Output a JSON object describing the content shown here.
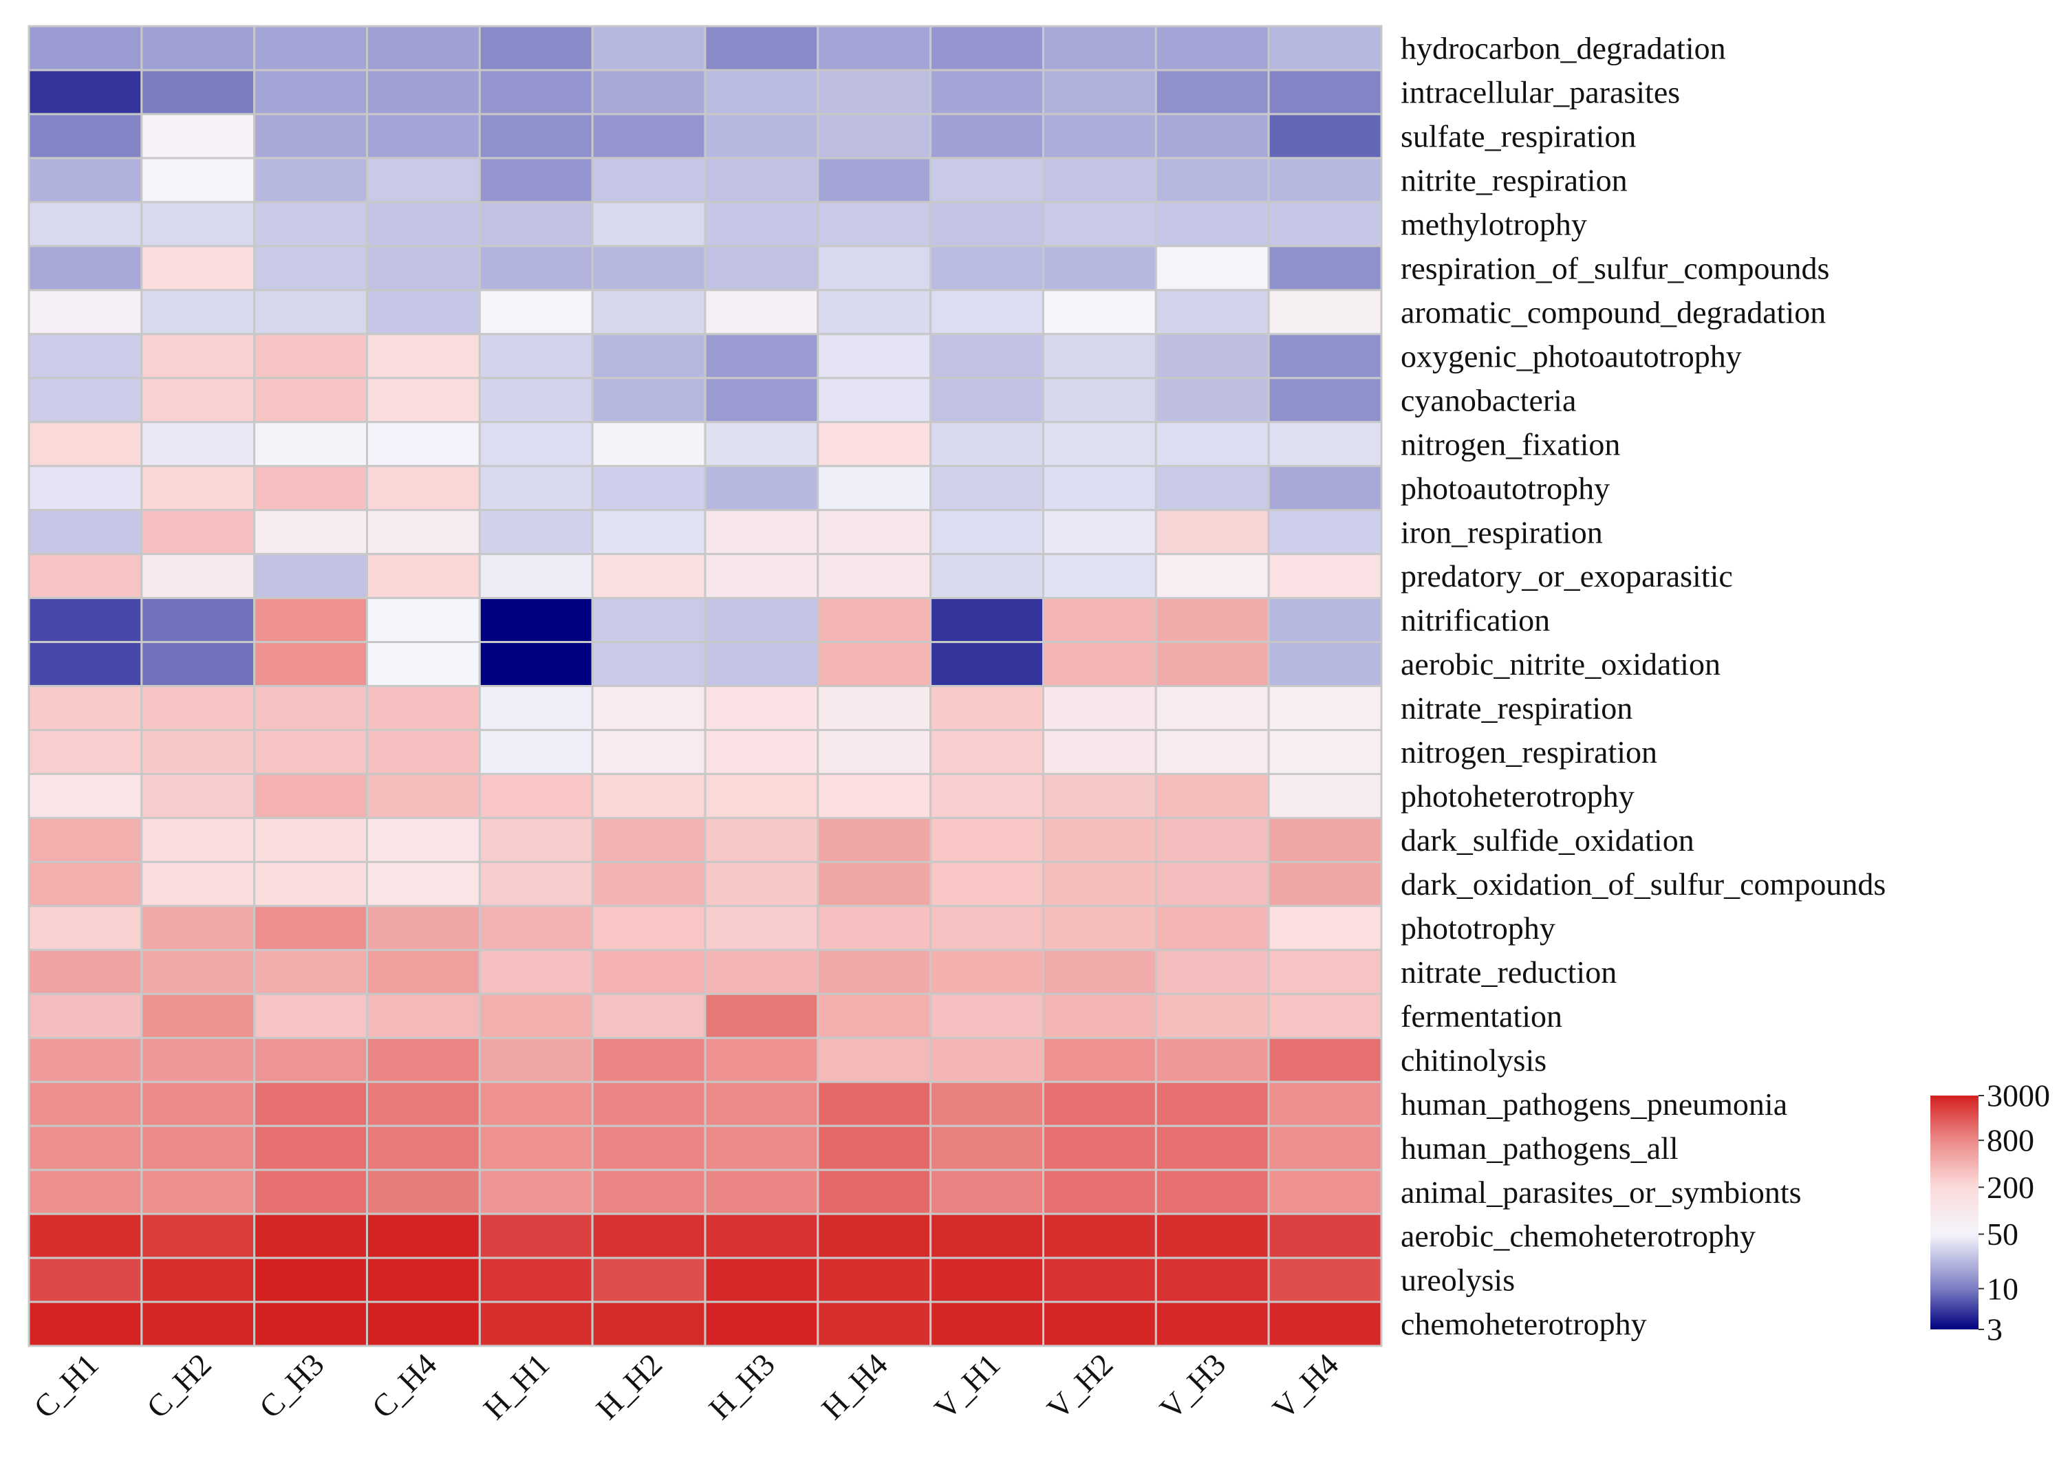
{
  "chart_data": {
    "type": "heatmap",
    "title": "",
    "columns": [
      "C_H1",
      "C_H2",
      "C_H3",
      "C_H4",
      "H_H1",
      "H_H2",
      "H_H3",
      "H_H4",
      "V_H1",
      "V_H2",
      "V_H3",
      "V_H4"
    ],
    "rows": [
      "hydrocarbon_degradation",
      "intracellular_parasites",
      "sulfate_respiration",
      "nitrite_respiration",
      "methylotrophy",
      "respiration_of_sulfur_compounds",
      "aromatic_compound_degradation",
      "oxygenic_photoautotrophy",
      "cyanobacteria",
      "nitrogen_fixation",
      "photoautotrophy",
      "iron_respiration",
      "predatory_or_exoparasitic",
      "nitrification",
      "aerobic_nitrite_oxidation",
      "nitrate_respiration",
      "nitrogen_respiration",
      "photoheterotrophy",
      "dark_sulfide_oxidation",
      "dark_oxidation_of_sulfur_compounds",
      "phototrophy",
      "nitrate_reduction",
      "fermentation",
      "chitinolysis",
      "human_pathogens_pneumonia",
      "human_pathogens_all",
      "animal_parasites_or_symbionts",
      "aerobic_chemoheterotrophy",
      "ureolysis",
      "chemoheterotrophy"
    ],
    "values": [
      [
        15,
        16,
        17,
        16,
        12,
        22,
        12,
        17,
        14,
        18,
        17,
        22
      ],
      [
        5,
        10,
        17,
        16,
        14,
        18,
        23,
        24,
        17,
        20,
        13,
        11
      ],
      [
        11,
        60,
        18,
        17,
        13,
        14,
        22,
        24,
        16,
        19,
        18,
        8
      ],
      [
        20,
        57,
        22,
        28,
        14,
        27,
        25,
        17,
        28,
        26,
        22,
        22
      ],
      [
        34,
        34,
        28,
        26,
        25,
        34,
        27,
        28,
        26,
        28,
        27,
        27
      ],
      [
        18,
        190,
        28,
        25,
        21,
        22,
        25,
        34,
        23,
        22,
        54,
        13
      ],
      [
        66,
        35,
        33,
        27,
        52,
        33,
        66,
        35,
        36,
        50,
        32,
        70
      ],
      [
        29,
        240,
        300,
        190,
        32,
        22,
        15,
        40,
        25,
        33,
        24,
        13
      ],
      [
        29,
        240,
        300,
        190,
        32,
        22,
        15,
        40,
        25,
        33,
        24,
        13
      ],
      [
        210,
        42,
        55,
        48,
        36,
        55,
        37,
        180,
        35,
        37,
        36,
        37
      ],
      [
        40,
        220,
        320,
        220,
        35,
        30,
        22,
        46,
        31,
        36,
        28,
        18
      ],
      [
        27,
        320,
        82,
        84,
        31,
        38,
        110,
        110,
        36,
        42,
        230,
        30
      ],
      [
        300,
        100,
        25,
        220,
        45,
        170,
        110,
        110,
        35,
        38,
        78,
        150
      ],
      [
        6,
        9,
        700,
        50,
        3,
        28,
        26,
        380,
        5,
        380,
        460,
        22
      ],
      [
        6,
        9,
        700,
        50,
        3,
        28,
        26,
        380,
        5,
        380,
        460,
        22
      ],
      [
        270,
        300,
        310,
        320,
        46,
        85,
        150,
        98,
        270,
        110,
        85,
        75
      ],
      [
        250,
        280,
        300,
        320,
        46,
        85,
        150,
        98,
        250,
        110,
        85,
        75
      ],
      [
        120,
        260,
        410,
        340,
        290,
        220,
        210,
        180,
        250,
        280,
        340,
        80
      ],
      [
        430,
        190,
        190,
        120,
        260,
        400,
        280,
        500,
        290,
        340,
        330,
        500
      ],
      [
        430,
        190,
        190,
        130,
        260,
        400,
        280,
        500,
        290,
        340,
        330,
        500
      ],
      [
        240,
        480,
        730,
        500,
        400,
        290,
        260,
        320,
        310,
        340,
        380,
        180
      ],
      [
        520,
        470,
        440,
        560,
        320,
        410,
        380,
        470,
        420,
        460,
        330,
        300
      ],
      [
        330,
        680,
        300,
        360,
        430,
        310,
        1000,
        430,
        320,
        390,
        340,
        300
      ],
      [
        600,
        620,
        660,
        850,
        500,
        850,
        700,
        360,
        380,
        700,
        620,
        1100
      ],
      [
        720,
        780,
        1100,
        960,
        700,
        850,
        800,
        1200,
        900,
        1100,
        1100,
        730
      ],
      [
        720,
        780,
        1100,
        960,
        700,
        850,
        800,
        1200,
        900,
        1100,
        1100,
        730
      ],
      [
        720,
        740,
        1100,
        950,
        650,
        850,
        830,
        1200,
        880,
        1100,
        1100,
        700
      ],
      [
        2500,
        2100,
        2800,
        2900,
        2000,
        2400,
        2400,
        2600,
        2600,
        2500,
        2500,
        2000
      ],
      [
        1800,
        2500,
        3000,
        2900,
        2300,
        1700,
        2700,
        2500,
        2700,
        2400,
        2400,
        1700
      ],
      [
        2900,
        2800,
        3000,
        3000,
        2500,
        2600,
        2900,
        2500,
        2800,
        2800,
        2700,
        2700
      ]
    ],
    "color_scale": {
      "scale": "log",
      "min": 3,
      "max": 3000,
      "stops": [
        {
          "value": 3,
          "color": "#000080"
        },
        {
          "value": 10,
          "color": "#7b7dc3"
        },
        {
          "value": 50,
          "color": "#f5f5fc"
        },
        {
          "value": 200,
          "color": "#fbdcdc"
        },
        {
          "value": 800,
          "color": "#eb8a88"
        },
        {
          "value": 3000,
          "color": "#d42020"
        }
      ],
      "ticks": [
        {
          "value": 3000,
          "label": "3000"
        },
        {
          "value": 800,
          "label": "800"
        },
        {
          "value": 200,
          "label": "200"
        },
        {
          "value": 50,
          "label": "50"
        },
        {
          "value": 10,
          "label": "10"
        },
        {
          "value": 3,
          "label": "3"
        }
      ]
    },
    "cell_border_color": "#c8c8c8"
  }
}
